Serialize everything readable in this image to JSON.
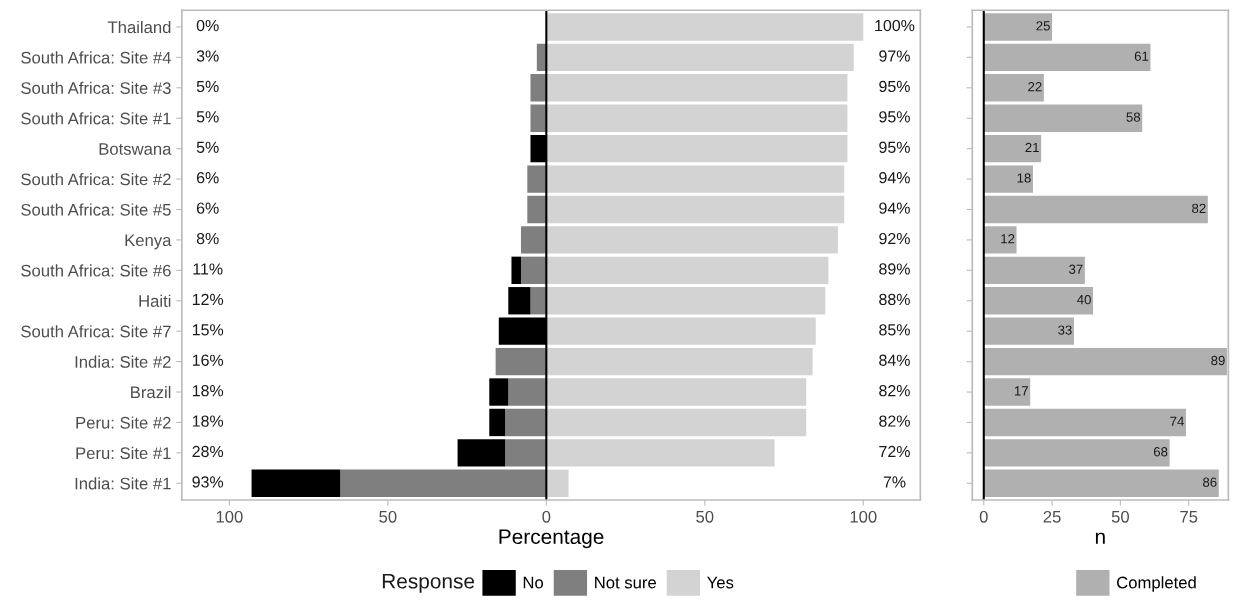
{
  "chart_data": [
    {
      "type": "bar",
      "orientation": "horizontal",
      "stacked": true,
      "xlabel": "Percentage",
      "legend_title": "Response",
      "legend": "bottom",
      "grid": false,
      "categories": [
        "Thailand",
        "South Africa: Site #4",
        "South Africa: Site #3",
        "South Africa: Site #1",
        "Botswana",
        "South Africa: Site #2",
        "South Africa: Site #5",
        "Kenya",
        "South Africa: Site #6",
        "Haiti",
        "South Africa: Site #7",
        "India: Site #2",
        "Brazil",
        "Peru: Site #2",
        "Peru: Site #1",
        "India: Site #1"
      ],
      "xlim": [
        -115,
        118
      ],
      "xticks": [
        {
          "value": -100,
          "label": "100"
        },
        {
          "value": -50,
          "label": "50"
        },
        0,
        50,
        100
      ],
      "ref_lines": [
        {
          "axis": "x",
          "value": 0,
          "color": "#000000"
        }
      ],
      "series": [
        {
          "name": "Not sure",
          "color": "#7f7f7f",
          "values": [
            0,
            -3,
            -5,
            -5,
            0,
            -6,
            -6,
            -8,
            -8,
            -5,
            0,
            -16,
            -12,
            -13,
            -13,
            -65
          ]
        },
        {
          "name": "No",
          "color": "#000000",
          "values": [
            0,
            0,
            0,
            0,
            -5,
            0,
            0,
            0,
            -3,
            -7,
            -15,
            0,
            -6,
            -5,
            -15,
            -28
          ]
        },
        {
          "name": "Yes",
          "color": "#d3d3d3",
          "values": [
            100,
            97,
            95,
            95,
            95,
            94,
            94,
            92,
            89,
            88,
            85,
            84,
            82,
            82,
            72,
            7
          ]
        }
      ],
      "annotations": [
        "0%",
        "3%",
        "5%",
        "5%",
        "5%",
        "6%",
        "6%",
        "8%",
        "11%",
        "12%",
        "15%",
        "16%",
        "18%",
        "18%",
        "28%",
        "93%",
        "100%",
        "97%",
        "95%",
        "95%",
        "95%",
        "94%",
        "94%",
        "92%",
        "89%",
        "88%",
        "85%",
        "84%",
        "82%",
        "82%",
        "72%",
        "7%"
      ]
    },
    {
      "type": "bar",
      "orientation": "horizontal",
      "xlabel": "n",
      "legend": "bottom",
      "grid": false,
      "data_labels": true,
      "tick_labels": "x",
      "categories": [
        null,
        null,
        null,
        null,
        null,
        null,
        null,
        null,
        null,
        null,
        null,
        null,
        null,
        null,
        null,
        null
      ],
      "xlim": [
        -4.2,
        89.5
      ],
      "xticks": [
        0,
        25,
        50,
        75
      ],
      "ref_lines": [
        {
          "axis": "x",
          "value": 0,
          "color": "#000000"
        }
      ],
      "series": [
        {
          "name": "Completed",
          "color": "#b0b0b0",
          "values": [
            25,
            61,
            22,
            58,
            21,
            18,
            82,
            12,
            37,
            40,
            33,
            89,
            17,
            74,
            68,
            86
          ]
        }
      ]
    }
  ]
}
